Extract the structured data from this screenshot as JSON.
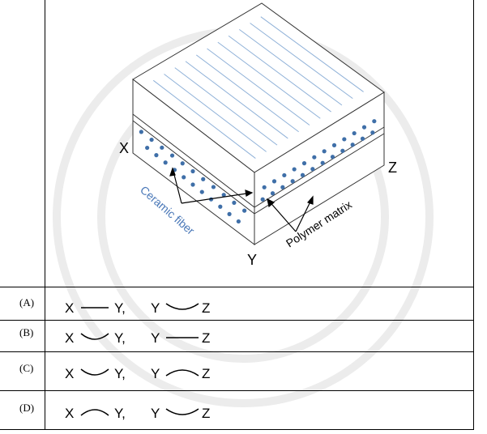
{
  "figure": {
    "labels": {
      "x": "X",
      "y": "Y",
      "z": "Z"
    },
    "annotations": {
      "ceramic": "Ceramic fiber",
      "polymer": "Polymer matrix"
    },
    "colors": {
      "fiber_dot": "#3f6fa8",
      "fiber_line": "#8fb1d8",
      "ceramic_text": "#4a78b8",
      "watermark": "#e8e8e8"
    }
  },
  "options": [
    {
      "letter": "(A)",
      "first_from": "X",
      "first_curve": "straight",
      "first_to": "Y,",
      "second_from": "Y",
      "second_curve": "concave",
      "second_to": "Z"
    },
    {
      "letter": "(B)",
      "first_from": "X",
      "first_curve": "concave",
      "first_to": "Y,",
      "second_from": "Y",
      "second_curve": "straight",
      "second_to": "Z"
    },
    {
      "letter": "(C)",
      "first_from": "X",
      "first_curve": "concave",
      "first_to": "Y,",
      "second_from": "Y",
      "second_curve": "convex",
      "second_to": "Z"
    },
    {
      "letter": "(D)",
      "first_from": "X",
      "first_curve": "convex",
      "first_to": "Y,",
      "second_from": "Y",
      "second_curve": "concave",
      "second_to": "Z"
    }
  ]
}
